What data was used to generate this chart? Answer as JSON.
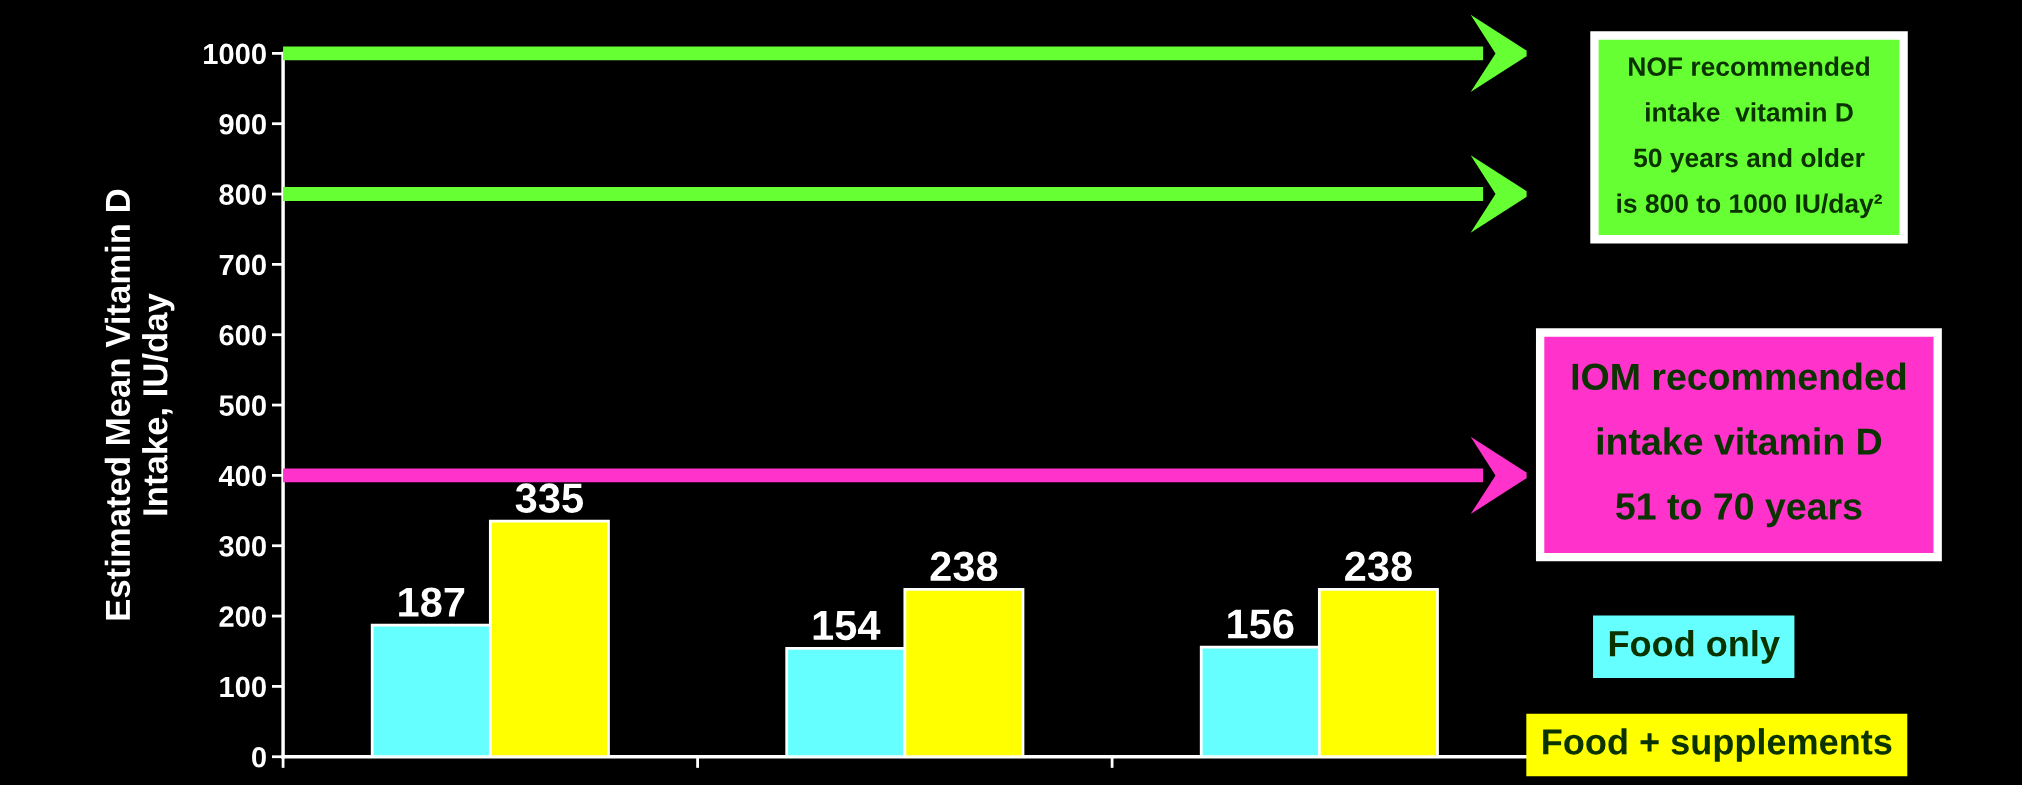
{
  "chart_data": {
    "type": "bar",
    "ylabel": "Estimated Mean Vitamin D\nIntake, IU/day",
    "categories": [
      null,
      null,
      null
    ],
    "series": [
      {
        "name": "Food only",
        "color": "#66ffff",
        "values": [
          187,
          154,
          156
        ]
      },
      {
        "name": "Food + supplements",
        "color": "#ffff00",
        "values": [
          335,
          238,
          238
        ]
      }
    ],
    "ylim": [
      0,
      1000
    ],
    "yticks": [
      0,
      100,
      200,
      300,
      400,
      500,
      600,
      700,
      800,
      900,
      1000
    ],
    "ref_lines": [
      {
        "axis": "y",
        "value": 1000,
        "color": "#66ff33"
      },
      {
        "axis": "y",
        "value": 800,
        "color": "#66ff33"
      },
      {
        "axis": "y",
        "value": 400,
        "color": "#ff33cc",
        "label": "IOM recommended\nintake vitamin D\n51 to 70 years"
      }
    ],
    "annotations": [
      "NOF recommended\nintake  vitamin D\n50 years and older\nis 800 to 1000 IU/day²"
    ],
    "data_labels": true,
    "grid": false,
    "legend": "right"
  }
}
